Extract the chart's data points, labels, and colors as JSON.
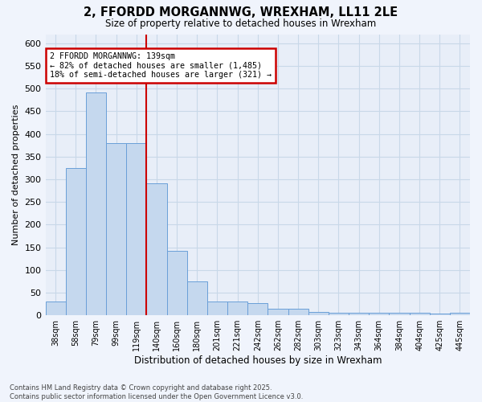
{
  "title_line1": "2, FFORDD MORGANNWG, WREXHAM, LL11 2LE",
  "title_line2": "Size of property relative to detached houses in Wrexham",
  "xlabel": "Distribution of detached houses by size in Wrexham",
  "ylabel": "Number of detached properties",
  "categories": [
    "38sqm",
    "58sqm",
    "79sqm",
    "99sqm",
    "119sqm",
    "140sqm",
    "160sqm",
    "180sqm",
    "201sqm",
    "221sqm",
    "242sqm",
    "262sqm",
    "282sqm",
    "303sqm",
    "323sqm",
    "343sqm",
    "364sqm",
    "384sqm",
    "404sqm",
    "425sqm",
    "445sqm"
  ],
  "values": [
    30,
    325,
    492,
    380,
    380,
    292,
    142,
    75,
    30,
    30,
    27,
    15,
    14,
    7,
    5,
    5,
    5,
    5,
    5,
    4,
    5
  ],
  "bar_color": "#c5d8ee",
  "bar_edge_color": "#6a9fd8",
  "vline_bar_index": 5,
  "vline_color": "#cc0000",
  "annotation_text": "2 FFORDD MORGANNWG: 139sqm\n← 82% of detached houses are smaller (1,485)\n18% of semi-detached houses are larger (321) →",
  "annotation_box_color": "#ffffff",
  "annotation_box_edge_color": "#cc0000",
  "ylim": [
    0,
    620
  ],
  "yticks": [
    0,
    50,
    100,
    150,
    200,
    250,
    300,
    350,
    400,
    450,
    500,
    550,
    600
  ],
  "grid_color": "#c8d8e8",
  "bg_color": "#e8eef8",
  "fig_color": "#f0f4fc",
  "footnote": "Contains HM Land Registry data © Crown copyright and database right 2025.\nContains public sector information licensed under the Open Government Licence v3.0."
}
